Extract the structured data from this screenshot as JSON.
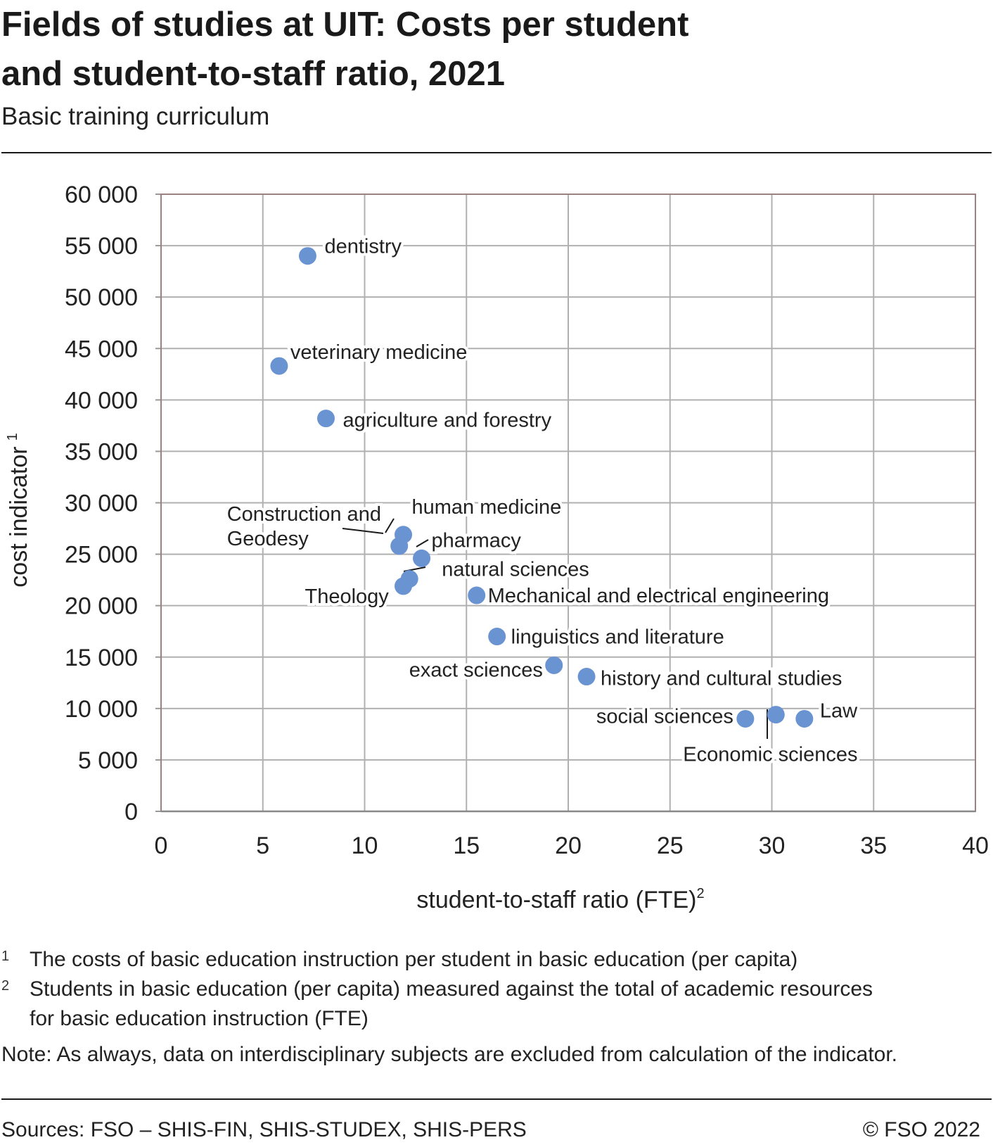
{
  "header": {
    "title_line1": "Fields of studies at UIT: Costs per student",
    "title_line2": "and student-to-staff ratio, 2021",
    "subtitle": "Basic training curriculum"
  },
  "chart_data": {
    "type": "scatter",
    "xlabel": "student-to-staff ratio (FTE)",
    "xlabel_sup": "2",
    "ylabel": "cost indicator",
    "ylabel_sup": "1",
    "xlim": [
      0,
      40
    ],
    "ylim": [
      0,
      60000
    ],
    "x_ticks": [
      "0",
      "5",
      "10",
      "15",
      "20",
      "25",
      "30",
      "35",
      "40"
    ],
    "y_ticks": [
      "0",
      "5 000",
      "10 000",
      "15 000",
      "20 000",
      "25 000",
      "30 000",
      "35 000",
      "40 000",
      "45 000",
      "50 000",
      "55 000",
      "60 000"
    ],
    "grid": true,
    "point_color": "#6a93d1",
    "points": [
      {
        "label": "dentistry",
        "x": 7.2,
        "y": 54000
      },
      {
        "label": "veterinary medicine",
        "x": 5.8,
        "y": 43300
      },
      {
        "label": "agriculture and forestry",
        "x": 8.1,
        "y": 38200
      },
      {
        "label": "human medicine",
        "x": 11.9,
        "y": 26900
      },
      {
        "label": "Construction and Geodesy",
        "x": 11.7,
        "y": 25800
      },
      {
        "label": "pharmacy",
        "x": 12.8,
        "y": 24600
      },
      {
        "label": "natural sciences",
        "x": 12.2,
        "y": 22600
      },
      {
        "label": "Theology",
        "x": 11.9,
        "y": 21900
      },
      {
        "label": "Mechanical and electrical engineering",
        "x": 15.5,
        "y": 21000
      },
      {
        "label": "linguistics and literature",
        "x": 16.5,
        "y": 17000
      },
      {
        "label": "exact sciences",
        "x": 19.3,
        "y": 14200
      },
      {
        "label": "history and cultural studies",
        "x": 20.9,
        "y": 13100
      },
      {
        "label": "social sciences",
        "x": 28.7,
        "y": 9000
      },
      {
        "label": "Economic sciences",
        "x": 30.2,
        "y": 9400
      },
      {
        "label": "Law",
        "x": 31.6,
        "y": 9000
      }
    ]
  },
  "footnotes": {
    "n1_mark": "1",
    "n1_text": "The costs of basic education instruction per student in basic education (per capita)",
    "n2_mark": "2",
    "n2_line1": "Students in basic education (per capita) measured against the total of academic resources",
    "n2_line2": "for basic education instruction (FTE)",
    "note": "Note: As always, data on interdisciplinary subjects are excluded from calculation of the indicator."
  },
  "footer": {
    "sources": "Sources: FSO – SHIS-FIN, SHIS-STUDEX, SHIS-PERS",
    "copyright": "© FSO 2022"
  }
}
